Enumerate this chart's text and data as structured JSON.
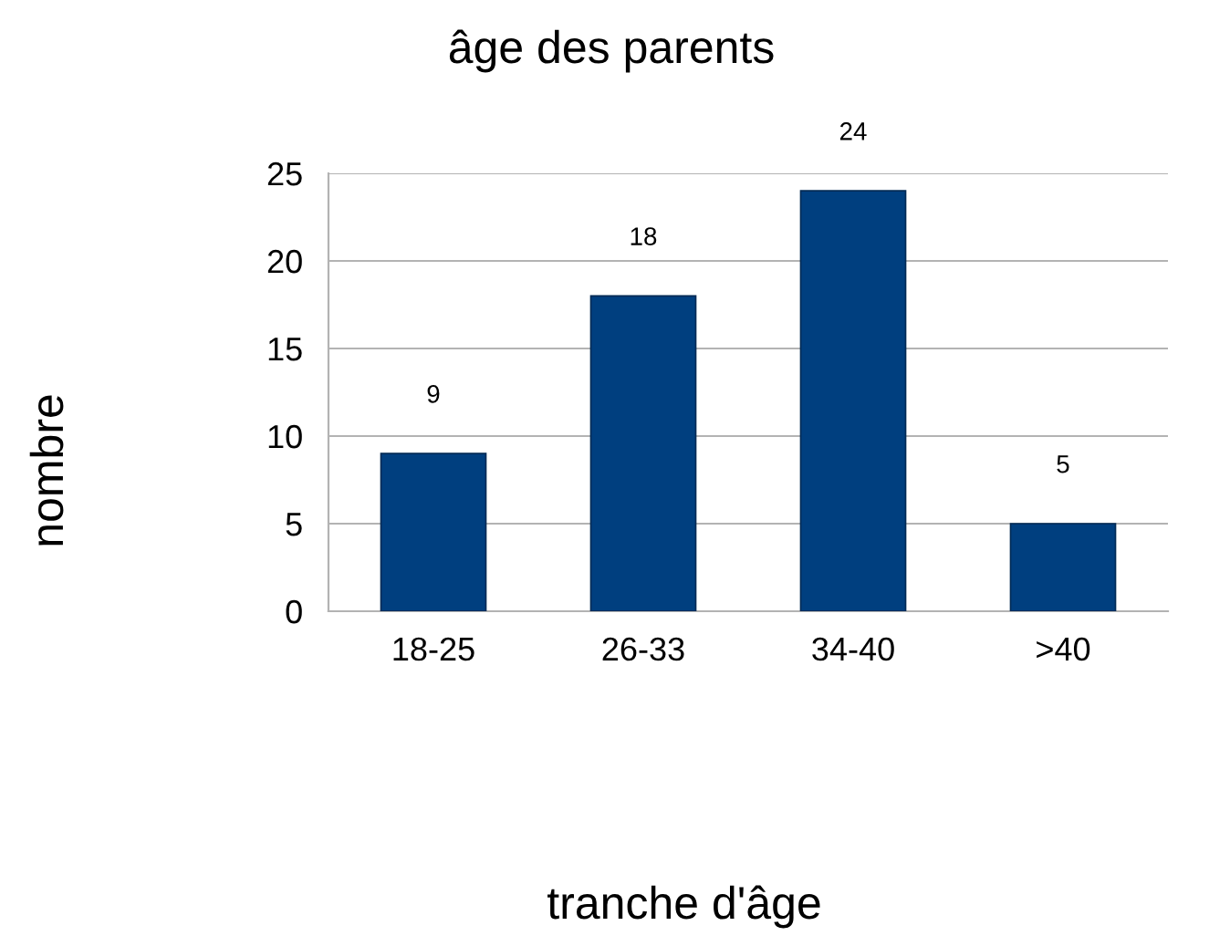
{
  "chart_data": {
    "type": "bar",
    "title": "âge des parents",
    "xlabel": "tranche d'âge",
    "ylabel": "nombre",
    "categories": [
      "18-25",
      "26-33",
      "34-40",
      ">40"
    ],
    "values": [
      9,
      18,
      24,
      5
    ],
    "color": "#003f7f",
    "ylim": [
      0,
      25
    ],
    "yticks": [
      0,
      5,
      10,
      15,
      20,
      25
    ],
    "grid": "y",
    "data_labels": true
  }
}
